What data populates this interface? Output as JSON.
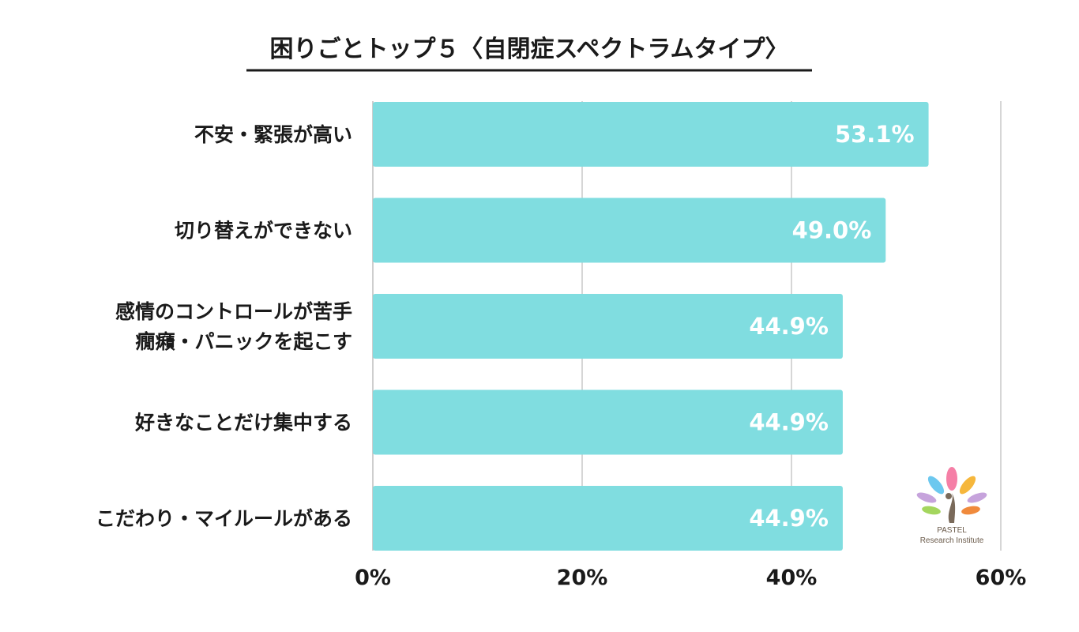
{
  "chart_data": {
    "type": "bar",
    "orientation": "horizontal",
    "title": "困りごとトップ５〈自閉症スペクトラムタイプ〉",
    "categories": [
      [
        "不安・緊張が高い"
      ],
      [
        "切り替えができない"
      ],
      [
        "感情のコントロールが苦手",
        "癇癪・パニックを起こす"
      ],
      [
        "好きなことだけ集中する"
      ],
      [
        "こだわり・マイルールがある"
      ]
    ],
    "values": [
      53.1,
      49.0,
      44.9,
      44.9,
      44.9
    ],
    "value_labels": [
      "53.1%",
      "49.0%",
      "44.9%",
      "44.9%",
      "44.9%"
    ],
    "xlim": [
      0,
      60
    ],
    "x_ticks": [
      0,
      20,
      40,
      60
    ],
    "x_tick_labels": [
      "0%",
      "20%",
      "40%",
      "60%"
    ],
    "grid": true,
    "bar_color": "#80dde0"
  },
  "logo": {
    "line1": "PASTEL",
    "line2": "Research Institute"
  }
}
